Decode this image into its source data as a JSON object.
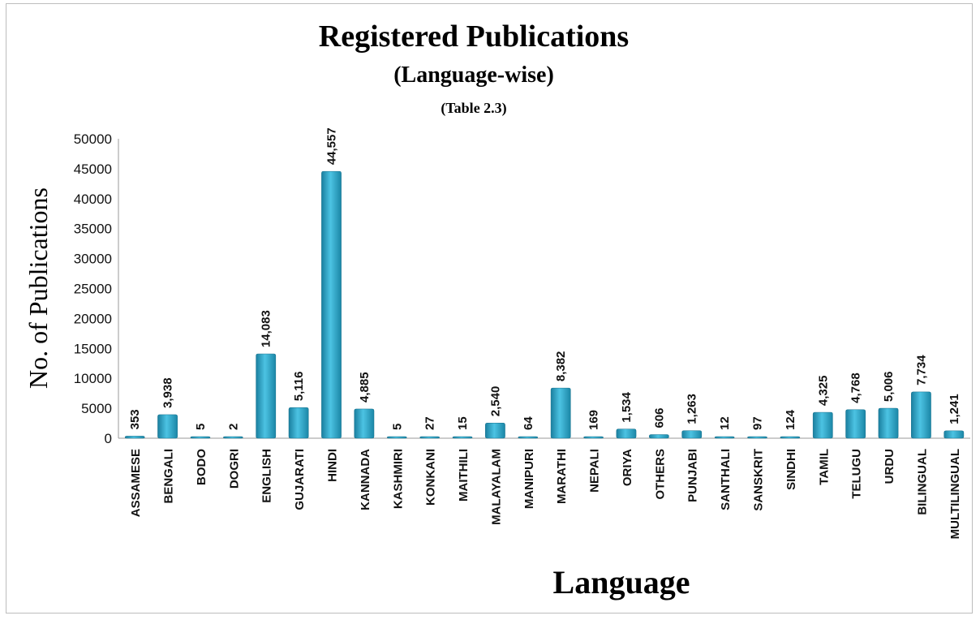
{
  "chart_data": {
    "type": "bar",
    "title": "Registered Publications",
    "subtitle": "(Language-wise)",
    "note": "(Table 2.3)",
    "xlabel": "Language",
    "ylabel": "No. of Publications",
    "ylim": [
      0,
      50000
    ],
    "yticks": [
      "0",
      "5000",
      "10000",
      "15000",
      "20000",
      "25000",
      "30000",
      "35000",
      "40000",
      "45000",
      "50000"
    ],
    "grid": false,
    "legend": "none",
    "bar_color": "#2aa3c6",
    "categories": [
      "ASSAMESE",
      "BENGALI",
      "BODO",
      "DOGRI",
      "ENGLISH",
      "GUJARATI",
      "HINDI",
      "KANNADA",
      "KASHMIRI",
      "KONKANI",
      "MAITHILI",
      "MALAYALAM",
      "MANIPURI",
      "MARATHI",
      "NEPALI",
      "ORIYA",
      "OTHERS",
      "PUNJABI",
      "SANTHALI",
      "SANSKRIT",
      "SINDHI",
      "TAMIL",
      "TELUGU",
      "URDU",
      "BILINGUAL",
      "MULTILINGUAL"
    ],
    "values": [
      353,
      3938,
      5,
      2,
      14083,
      5116,
      44557,
      4885,
      5,
      27,
      15,
      2540,
      64,
      8382,
      169,
      1534,
      606,
      1263,
      12,
      97,
      124,
      4325,
      4768,
      5006,
      7734,
      1241
    ],
    "data_labels": [
      "353",
      "3,938",
      "5",
      "2",
      "14,083",
      "5,116",
      "44,557",
      "4,885",
      "5",
      "27",
      "15",
      "2,540",
      "64",
      "8,382",
      "169",
      "1,534",
      "606",
      "1,263",
      "12",
      "97",
      "124",
      "4,325",
      "4,768",
      "5,006",
      "7,734",
      "1,241"
    ]
  }
}
